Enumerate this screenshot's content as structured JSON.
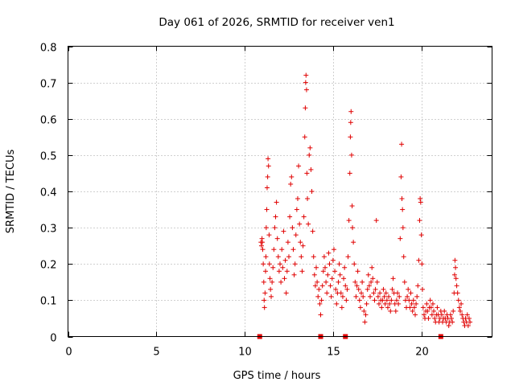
{
  "chart_data": {
    "type": "scatter",
    "title": "Day 061 of 2026, SRMTID for receiver ven1",
    "xlabel": "GPS time / hours",
    "ylabel": "SRMTID / TECUs",
    "xlim": [
      0,
      24
    ],
    "ylim": [
      0,
      0.8
    ],
    "xticks": [
      "0",
      "5",
      "10",
      "15",
      "20"
    ],
    "yticks": [
      "0",
      "0.1",
      "0.2",
      "0.3",
      "0.4",
      "0.5",
      "0.6",
      "0.7",
      "0.8"
    ],
    "grid": true,
    "marker": "+",
    "color": "#e00000",
    "bottom_markers_x": [
      10.85,
      14.3,
      15.7,
      21.1
    ],
    "series": [
      {
        "name": "SRMTID ven1",
        "points": [
          [
            10.92,
            0.26
          ],
          [
            10.95,
            0.25
          ],
          [
            10.98,
            0.27
          ],
          [
            11.0,
            0.26
          ],
          [
            11.02,
            0.24
          ],
          [
            11.05,
            0.2
          ],
          [
            11.08,
            0.15
          ],
          [
            11.1,
            0.1
          ],
          [
            11.12,
            0.08
          ],
          [
            11.15,
            0.12
          ],
          [
            11.18,
            0.18
          ],
          [
            11.2,
            0.22
          ],
          [
            11.22,
            0.3
          ],
          [
            11.25,
            0.35
          ],
          [
            11.27,
            0.41
          ],
          [
            11.3,
            0.44
          ],
          [
            11.32,
            0.49
          ],
          [
            11.35,
            0.47
          ],
          [
            11.38,
            0.28
          ],
          [
            11.4,
            0.2
          ],
          [
            11.43,
            0.16
          ],
          [
            11.46,
            0.13
          ],
          [
            11.5,
            0.11
          ],
          [
            11.55,
            0.15
          ],
          [
            11.6,
            0.19
          ],
          [
            11.65,
            0.24
          ],
          [
            11.7,
            0.3
          ],
          [
            11.75,
            0.33
          ],
          [
            11.8,
            0.37
          ],
          [
            11.85,
            0.27
          ],
          [
            11.9,
            0.22
          ],
          [
            11.95,
            0.18
          ],
          [
            12.0,
            0.2
          ],
          [
            12.05,
            0.15
          ],
          [
            12.1,
            0.24
          ],
          [
            12.15,
            0.19
          ],
          [
            12.2,
            0.29
          ],
          [
            12.25,
            0.16
          ],
          [
            12.3,
            0.21
          ],
          [
            12.35,
            0.12
          ],
          [
            12.4,
            0.18
          ],
          [
            12.45,
            0.26
          ],
          [
            12.5,
            0.22
          ],
          [
            12.55,
            0.33
          ],
          [
            12.6,
            0.42
          ],
          [
            12.65,
            0.44
          ],
          [
            12.7,
            0.3
          ],
          [
            12.75,
            0.24
          ],
          [
            12.8,
            0.17
          ],
          [
            12.85,
            0.2
          ],
          [
            12.9,
            0.28
          ],
          [
            12.95,
            0.35
          ],
          [
            13.0,
            0.38
          ],
          [
            13.05,
            0.47
          ],
          [
            13.1,
            0.31
          ],
          [
            13.15,
            0.26
          ],
          [
            13.2,
            0.22
          ],
          [
            13.25,
            0.18
          ],
          [
            13.3,
            0.25
          ],
          [
            13.35,
            0.33
          ],
          [
            13.4,
            0.55
          ],
          [
            13.43,
            0.63
          ],
          [
            13.45,
            0.7
          ],
          [
            13.47,
            0.72
          ],
          [
            13.5,
            0.68
          ],
          [
            13.52,
            0.45
          ],
          [
            13.55,
            0.38
          ],
          [
            13.6,
            0.31
          ],
          [
            13.65,
            0.5
          ],
          [
            13.7,
            0.52
          ],
          [
            13.75,
            0.46
          ],
          [
            13.8,
            0.4
          ],
          [
            13.85,
            0.29
          ],
          [
            13.9,
            0.22
          ],
          [
            13.95,
            0.17
          ],
          [
            14.0,
            0.14
          ],
          [
            14.05,
            0.19
          ],
          [
            14.1,
            0.15
          ],
          [
            14.15,
            0.11
          ],
          [
            14.2,
            0.13
          ],
          [
            14.25,
            0.09
          ],
          [
            14.3,
            0.06
          ],
          [
            14.35,
            0.1
          ],
          [
            14.4,
            0.14
          ],
          [
            14.45,
            0.18
          ],
          [
            14.5,
            0.22
          ],
          [
            14.55,
            0.19
          ],
          [
            14.6,
            0.15
          ],
          [
            14.65,
            0.12
          ],
          [
            14.7,
            0.17
          ],
          [
            14.75,
            0.23
          ],
          [
            14.8,
            0.2
          ],
          [
            14.85,
            0.14
          ],
          [
            14.9,
            0.11
          ],
          [
            14.95,
            0.16
          ],
          [
            15.0,
            0.21
          ],
          [
            15.05,
            0.24
          ],
          [
            15.1,
            0.18
          ],
          [
            15.15,
            0.13
          ],
          [
            15.2,
            0.09
          ],
          [
            15.25,
            0.12
          ],
          [
            15.3,
            0.15
          ],
          [
            15.35,
            0.2
          ],
          [
            15.4,
            0.17
          ],
          [
            15.45,
            0.12
          ],
          [
            15.5,
            0.08
          ],
          [
            15.55,
            0.11
          ],
          [
            15.6,
            0.16
          ],
          [
            15.65,
            0.19
          ],
          [
            15.7,
            0.14
          ],
          [
            15.75,
            0.1
          ],
          [
            15.8,
            0.13
          ],
          [
            15.85,
            0.22
          ],
          [
            15.9,
            0.32
          ],
          [
            15.95,
            0.45
          ],
          [
            15.98,
            0.55
          ],
          [
            16.0,
            0.59
          ],
          [
            16.02,
            0.62
          ],
          [
            16.05,
            0.5
          ],
          [
            16.08,
            0.36
          ],
          [
            16.1,
            0.3
          ],
          [
            16.15,
            0.26
          ],
          [
            16.2,
            0.2
          ],
          [
            16.25,
            0.15
          ],
          [
            16.3,
            0.11
          ],
          [
            16.35,
            0.14
          ],
          [
            16.4,
            0.18
          ],
          [
            16.45,
            0.13
          ],
          [
            16.5,
            0.1
          ],
          [
            16.55,
            0.08
          ],
          [
            16.6,
            0.12
          ],
          [
            16.65,
            0.15
          ],
          [
            16.7,
            0.11
          ],
          [
            16.75,
            0.07
          ],
          [
            16.8,
            0.04
          ],
          [
            16.85,
            0.06
          ],
          [
            16.9,
            0.09
          ],
          [
            16.95,
            0.13
          ],
          [
            17.0,
            0.17
          ],
          [
            17.05,
            0.14
          ],
          [
            17.1,
            0.11
          ],
          [
            17.15,
            0.15
          ],
          [
            17.2,
            0.19
          ],
          [
            17.25,
            0.16
          ],
          [
            17.3,
            0.12
          ],
          [
            17.35,
            0.1
          ],
          [
            17.4,
            0.13
          ],
          [
            17.45,
            0.32
          ],
          [
            17.5,
            0.15
          ],
          [
            17.55,
            0.11
          ],
          [
            17.6,
            0.09
          ],
          [
            17.65,
            0.12
          ],
          [
            17.7,
            0.1
          ],
          [
            17.75,
            0.08
          ],
          [
            17.8,
            0.1
          ],
          [
            17.85,
            0.13
          ],
          [
            17.9,
            0.11
          ],
          [
            17.95,
            0.09
          ],
          [
            18.0,
            0.12
          ],
          [
            18.05,
            0.1
          ],
          [
            18.1,
            0.08
          ],
          [
            18.15,
            0.11
          ],
          [
            18.2,
            0.09
          ],
          [
            18.25,
            0.07
          ],
          [
            18.3,
            0.1
          ],
          [
            18.35,
            0.13
          ],
          [
            18.4,
            0.16
          ],
          [
            18.45,
            0.12
          ],
          [
            18.5,
            0.09
          ],
          [
            18.55,
            0.07
          ],
          [
            18.6,
            0.1
          ],
          [
            18.65,
            0.12
          ],
          [
            18.7,
            0.09
          ],
          [
            18.75,
            0.11
          ],
          [
            18.8,
            0.27
          ],
          [
            18.85,
            0.44
          ],
          [
            18.88,
            0.53
          ],
          [
            18.9,
            0.38
          ],
          [
            18.93,
            0.35
          ],
          [
            18.96,
            0.3
          ],
          [
            19.0,
            0.22
          ],
          [
            19.05,
            0.15
          ],
          [
            19.1,
            0.1
          ],
          [
            19.15,
            0.08
          ],
          [
            19.2,
            0.11
          ],
          [
            19.25,
            0.13
          ],
          [
            19.3,
            0.1
          ],
          [
            19.35,
            0.08
          ],
          [
            19.4,
            0.12
          ],
          [
            19.45,
            0.09
          ],
          [
            19.5,
            0.07
          ],
          [
            19.55,
            0.1
          ],
          [
            19.6,
            0.08
          ],
          [
            19.65,
            0.06
          ],
          [
            19.7,
            0.09
          ],
          [
            19.75,
            0.11
          ],
          [
            19.8,
            0.14
          ],
          [
            19.85,
            0.21
          ],
          [
            19.9,
            0.32
          ],
          [
            19.93,
            0.38
          ],
          [
            19.96,
            0.37
          ],
          [
            20.0,
            0.28
          ],
          [
            20.03,
            0.2
          ],
          [
            20.06,
            0.13
          ],
          [
            20.1,
            0.08
          ],
          [
            20.15,
            0.06
          ],
          [
            20.2,
            0.05
          ],
          [
            20.25,
            0.07
          ],
          [
            20.3,
            0.09
          ],
          [
            20.35,
            0.07
          ],
          [
            20.4,
            0.05
          ],
          [
            20.45,
            0.08
          ],
          [
            20.5,
            0.1
          ],
          [
            20.55,
            0.08
          ],
          [
            20.6,
            0.06
          ],
          [
            20.65,
            0.09
          ],
          [
            20.7,
            0.07
          ],
          [
            20.75,
            0.05
          ],
          [
            20.8,
            0.04
          ],
          [
            20.85,
            0.06
          ],
          [
            20.9,
            0.08
          ],
          [
            20.95,
            0.06
          ],
          [
            21.0,
            0.04
          ],
          [
            21.05,
            0.05
          ],
          [
            21.1,
            0.07
          ],
          [
            21.15,
            0.06
          ],
          [
            21.2,
            0.04
          ],
          [
            21.25,
            0.05
          ],
          [
            21.3,
            0.07
          ],
          [
            21.35,
            0.05
          ],
          [
            21.4,
            0.04
          ],
          [
            21.45,
            0.06
          ],
          [
            21.5,
            0.05
          ],
          [
            21.55,
            0.03
          ],
          [
            21.6,
            0.04
          ],
          [
            21.65,
            0.06
          ],
          [
            21.7,
            0.05
          ],
          [
            21.75,
            0.04
          ],
          [
            21.8,
            0.07
          ],
          [
            21.85,
            0.12
          ],
          [
            21.88,
            0.17
          ],
          [
            21.9,
            0.21
          ],
          [
            21.93,
            0.19
          ],
          [
            21.96,
            0.16
          ],
          [
            22.0,
            0.14
          ],
          [
            22.05,
            0.12
          ],
          [
            22.1,
            0.1
          ],
          [
            22.15,
            0.08
          ],
          [
            22.2,
            0.07
          ],
          [
            22.25,
            0.09
          ],
          [
            22.3,
            0.06
          ],
          [
            22.35,
            0.05
          ],
          [
            22.4,
            0.04
          ],
          [
            22.45,
            0.03
          ],
          [
            22.5,
            0.05
          ],
          [
            22.55,
            0.04
          ],
          [
            22.6,
            0.06
          ],
          [
            22.65,
            0.03
          ],
          [
            22.7,
            0.05
          ],
          [
            22.75,
            0.04
          ]
        ]
      }
    ]
  }
}
